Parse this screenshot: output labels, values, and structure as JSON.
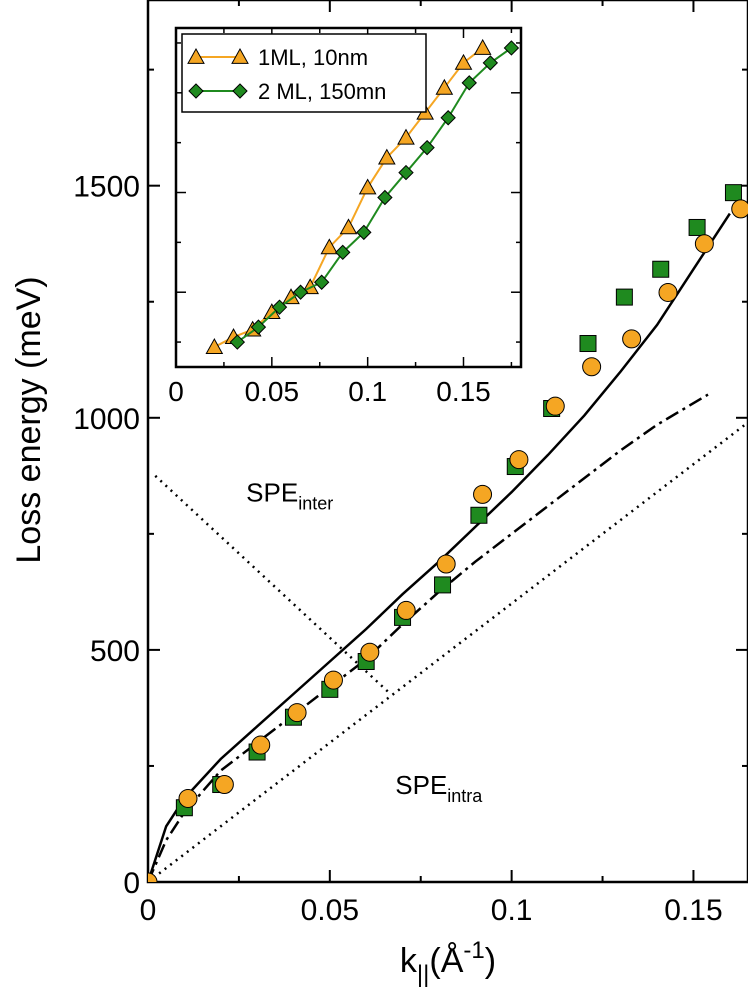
{
  "chart_data": [
    {
      "type": "scatter",
      "xlabel": "k",
      "xlabel_sub": "||",
      "xlabel_unit": "(Å",
      "xlabel_unit_sup": "-1",
      "xlabel_close": ")",
      "ylabel": "Loss energy (meV)",
      "xlim": [
        0,
        0.165
      ],
      "ylim": [
        0,
        1900
      ],
      "xticks": [
        0,
        0.05,
        0.1,
        0.15
      ],
      "xtick_labels": [
        "0",
        "0.05",
        "0.1",
        "0.15"
      ],
      "yticks": [
        0,
        500,
        1000,
        1500
      ],
      "ytick_labels": [
        "0",
        "500",
        "1000",
        "1500"
      ],
      "grid": false,
      "annotations": [
        {
          "text": "SPE",
          "sub": "inter",
          "x": 0.027,
          "y": 820
        },
        {
          "text": "SPE",
          "sub": "intra",
          "x": 0.068,
          "y": 190
        }
      ],
      "series": [
        {
          "color": "#f5a623",
          "marker": "circle",
          "x": [
            0,
            0.011,
            0.021,
            0.031,
            0.041,
            0.051,
            0.061,
            0.071,
            0.082,
            0.092,
            0.102,
            0.112,
            0.122,
            0.133,
            0.143,
            0.153,
            0.163
          ],
          "y": [
            0,
            180,
            210,
            295,
            365,
            435,
            495,
            585,
            685,
            835,
            910,
            1025,
            1110,
            1170,
            1270,
            1375,
            1450
          ]
        },
        {
          "color": "#1f8a1f",
          "marker": "square",
          "x": [
            0.01,
            0.02,
            0.03,
            0.04,
            0.05,
            0.06,
            0.07,
            0.081,
            0.091,
            0.101,
            0.111,
            0.121,
            0.131,
            0.141,
            0.151,
            0.161
          ],
          "y": [
            160,
            210,
            280,
            355,
            415,
            475,
            570,
            640,
            790,
            895,
            1020,
            1160,
            1260,
            1320,
            1410,
            1485
          ]
        }
      ],
      "lines": [
        {
          "style": "solid",
          "x": [
            0,
            0.005,
            0.01,
            0.02,
            0.03,
            0.04,
            0.05,
            0.06,
            0.07,
            0.08,
            0.09,
            0.1,
            0.11,
            0.12,
            0.13,
            0.14,
            0.15,
            0.16
          ],
          "y": [
            0,
            120,
            180,
            265,
            335,
            405,
            475,
            545,
            620,
            690,
            765,
            840,
            920,
            1005,
            1100,
            1200,
            1320,
            1440
          ]
        },
        {
          "style": "dashdot",
          "x": [
            0,
            0.005,
            0.01,
            0.02,
            0.03,
            0.04,
            0.05,
            0.06,
            0.07,
            0.08,
            0.09,
            0.1,
            0.11,
            0.12,
            0.13,
            0.14,
            0.154
          ],
          "y": [
            0,
            90,
            150,
            240,
            300,
            360,
            420,
            480,
            555,
            625,
            690,
            750,
            810,
            870,
            930,
            985,
            1050
          ]
        },
        {
          "style": "dotted",
          "x": [
            0,
            0.165
          ],
          "y": [
            0,
            990
          ]
        },
        {
          "style": "dotted",
          "x": [
            0.002,
            0.066
          ],
          "y": [
            875,
            410
          ]
        }
      ]
    },
    {
      "type": "line",
      "xlim": [
        0,
        0.18
      ],
      "xticks": [
        0,
        0.05,
        0.1,
        0.15
      ],
      "xtick_labels": [
        "0",
        "0.05",
        "0.1",
        "0.15"
      ],
      "legend_position": "top-left",
      "grid": false,
      "series": [
        {
          "name": "1ML, 10nm",
          "color": "#f5a623",
          "marker": "triangle",
          "x": [
            0.02,
            0.03,
            0.04,
            0.05,
            0.06,
            0.07,
            0.08,
            0.09,
            0.1,
            0.11,
            0.12,
            0.13,
            0.14,
            0.15,
            0.16
          ],
          "y": [
            190,
            210,
            225,
            260,
            290,
            310,
            390,
            430,
            510,
            570,
            610,
            660,
            710,
            760,
            790
          ]
        },
        {
          "name": "2 ML, 150mn",
          "color": "#1f8a1f",
          "marker": "diamond",
          "x": [
            0.032,
            0.043,
            0.054,
            0.065,
            0.076,
            0.087,
            0.098,
            0.109,
            0.12,
            0.131,
            0.142,
            0.153,
            0.164,
            0.175
          ],
          "y": [
            200,
            230,
            270,
            300,
            320,
            380,
            420,
            490,
            540,
            590,
            650,
            720,
            760,
            790
          ]
        }
      ]
    }
  ]
}
